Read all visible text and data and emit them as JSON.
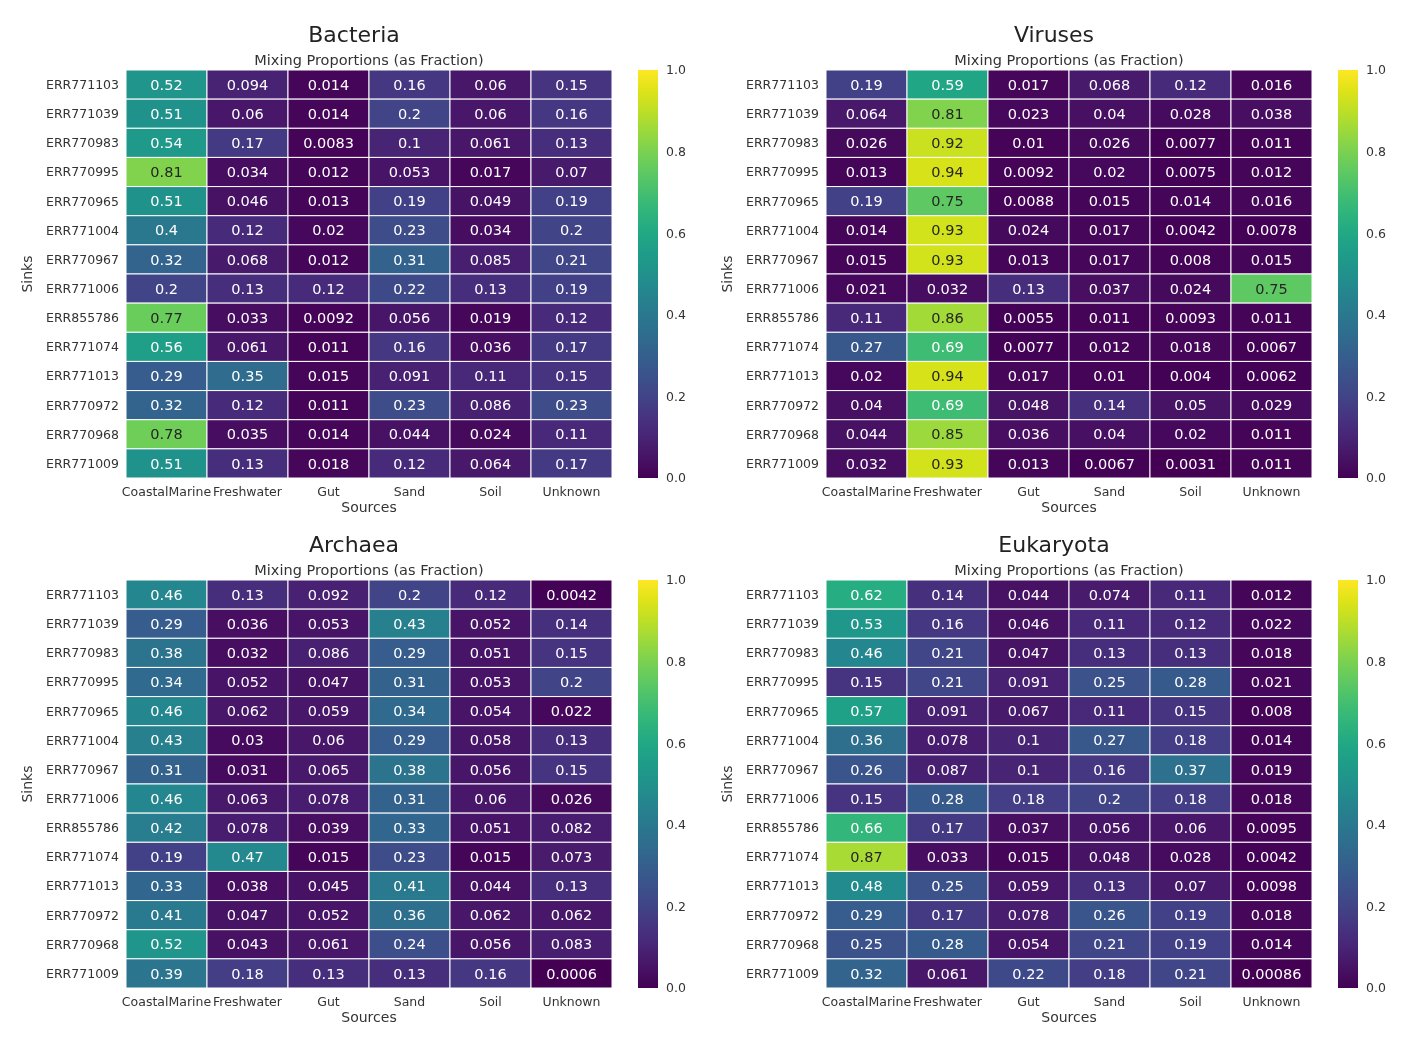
{
  "chart_data": [
    {
      "type": "heatmap",
      "title": "Bacteria",
      "subtitle": "Mixing Proportions (as Fraction)",
      "xlabel": "Sources",
      "ylabel": "Sinks",
      "categories": [
        "CoastalMarine",
        "Freshwater",
        "Gut",
        "Sand",
        "Soil",
        "Unknown"
      ],
      "y_categories": [
        "ERR771103",
        "ERR771039",
        "ERR770983",
        "ERR770995",
        "ERR770965",
        "ERR771004",
        "ERR770967",
        "ERR771006",
        "ERR855786",
        "ERR771074",
        "ERR771013",
        "ERR770972",
        "ERR770968",
        "ERR771009"
      ],
      "cells": [
        [
          0.52,
          0.094,
          0.014,
          0.16,
          0.06,
          0.15
        ],
        [
          0.51,
          0.06,
          0.014,
          0.2,
          0.06,
          0.16
        ],
        [
          0.54,
          0.17,
          0.0083,
          0.1,
          0.061,
          0.13
        ],
        [
          0.81,
          0.034,
          0.012,
          0.053,
          0.017,
          0.07
        ],
        [
          0.51,
          0.046,
          0.013,
          0.19,
          0.049,
          0.19
        ],
        [
          0.4,
          0.12,
          0.02,
          0.23,
          0.034,
          0.2
        ],
        [
          0.32,
          0.068,
          0.012,
          0.31,
          0.085,
          0.21
        ],
        [
          0.2,
          0.13,
          0.12,
          0.22,
          0.13,
          0.19
        ],
        [
          0.77,
          0.033,
          0.0092,
          0.056,
          0.019,
          0.12
        ],
        [
          0.56,
          0.061,
          0.011,
          0.16,
          0.036,
          0.17
        ],
        [
          0.29,
          0.35,
          0.015,
          0.091,
          0.11,
          0.15
        ],
        [
          0.32,
          0.12,
          0.011,
          0.23,
          0.086,
          0.23
        ],
        [
          0.78,
          0.035,
          0.014,
          0.044,
          0.024,
          0.11
        ],
        [
          0.51,
          0.13,
          0.018,
          0.12,
          0.064,
          0.17
        ]
      ],
      "clim": [
        0,
        1
      ],
      "cticks": [
        {
          "value": 0,
          "label": "0.0"
        },
        {
          "value": 0.2,
          "label": "0.2"
        },
        {
          "value": 0.4,
          "label": "0.4"
        },
        {
          "value": 0.6,
          "label": "0.6"
        },
        {
          "value": 0.8,
          "label": "0.8"
        },
        {
          "value": 1,
          "label": "1.0"
        }
      ],
      "data_labels": true
    },
    {
      "type": "heatmap",
      "title": "Viruses",
      "subtitle": "Mixing Proportions (as Fraction)",
      "xlabel": "Sources",
      "ylabel": "Sinks",
      "categories": [
        "CoastalMarine",
        "Freshwater",
        "Gut",
        "Sand",
        "Soil",
        "Unknown"
      ],
      "y_categories": [
        "ERR771103",
        "ERR771039",
        "ERR770983",
        "ERR770995",
        "ERR770965",
        "ERR771004",
        "ERR770967",
        "ERR771006",
        "ERR855786",
        "ERR771074",
        "ERR771013",
        "ERR770972",
        "ERR770968",
        "ERR771009"
      ],
      "cells": [
        [
          0.19,
          0.59,
          0.017,
          0.068,
          0.12,
          0.016
        ],
        [
          0.064,
          0.81,
          0.023,
          0.04,
          0.028,
          0.038
        ],
        [
          0.026,
          0.92,
          0.01,
          0.026,
          0.0077,
          0.011
        ],
        [
          0.013,
          0.94,
          0.0092,
          0.02,
          0.0075,
          0.012
        ],
        [
          0.19,
          0.75,
          0.0088,
          0.015,
          0.014,
          0.016
        ],
        [
          0.014,
          0.93,
          0.024,
          0.017,
          0.0042,
          0.0078
        ],
        [
          0.015,
          0.93,
          0.013,
          0.017,
          0.008,
          0.015
        ],
        [
          0.021,
          0.032,
          0.13,
          0.037,
          0.024,
          0.75
        ],
        [
          0.11,
          0.86,
          0.0055,
          0.011,
          0.0093,
          0.011
        ],
        [
          0.27,
          0.69,
          0.0077,
          0.012,
          0.018,
          0.0067
        ],
        [
          0.02,
          0.94,
          0.017,
          0.01,
          0.004,
          0.0062
        ],
        [
          0.04,
          0.69,
          0.048,
          0.14,
          0.05,
          0.029
        ],
        [
          0.044,
          0.85,
          0.036,
          0.04,
          0.02,
          0.011
        ],
        [
          0.032,
          0.93,
          0.013,
          0.0067,
          0.0031,
          0.011
        ]
      ],
      "clim": [
        0,
        1
      ],
      "cticks": [
        {
          "value": 0,
          "label": "0.0"
        },
        {
          "value": 0.2,
          "label": "0.2"
        },
        {
          "value": 0.4,
          "label": "0.4"
        },
        {
          "value": 0.6,
          "label": "0.6"
        },
        {
          "value": 0.8,
          "label": "0.8"
        },
        {
          "value": 1,
          "label": "1.0"
        }
      ],
      "data_labels": true
    },
    {
      "type": "heatmap",
      "title": "Archaea",
      "subtitle": "Mixing Proportions (as Fraction)",
      "xlabel": "Sources",
      "ylabel": "Sinks",
      "categories": [
        "CoastalMarine",
        "Freshwater",
        "Gut",
        "Sand",
        "Soil",
        "Unknown"
      ],
      "y_categories": [
        "ERR771103",
        "ERR771039",
        "ERR770983",
        "ERR770995",
        "ERR770965",
        "ERR771004",
        "ERR770967",
        "ERR771006",
        "ERR855786",
        "ERR771074",
        "ERR771013",
        "ERR770972",
        "ERR770968",
        "ERR771009"
      ],
      "cells": [
        [
          0.46,
          0.13,
          0.092,
          0.2,
          0.12,
          0.0042
        ],
        [
          0.29,
          0.036,
          0.053,
          0.43,
          0.052,
          0.14
        ],
        [
          0.38,
          0.032,
          0.086,
          0.29,
          0.051,
          0.15
        ],
        [
          0.34,
          0.052,
          0.047,
          0.31,
          0.053,
          0.2
        ],
        [
          0.46,
          0.062,
          0.059,
          0.34,
          0.054,
          0.022
        ],
        [
          0.43,
          0.03,
          0.06,
          0.29,
          0.058,
          0.13
        ],
        [
          0.31,
          0.031,
          0.065,
          0.38,
          0.056,
          0.15
        ],
        [
          0.46,
          0.063,
          0.078,
          0.31,
          0.06,
          0.026
        ],
        [
          0.42,
          0.078,
          0.039,
          0.33,
          0.051,
          0.082
        ],
        [
          0.19,
          0.47,
          0.015,
          0.23,
          0.015,
          0.073
        ],
        [
          0.33,
          0.038,
          0.045,
          0.41,
          0.044,
          0.13
        ],
        [
          0.41,
          0.047,
          0.052,
          0.36,
          0.062,
          0.062
        ],
        [
          0.52,
          0.043,
          0.061,
          0.24,
          0.056,
          0.083
        ],
        [
          0.39,
          0.18,
          0.13,
          0.13,
          0.16,
          0.0006
        ]
      ],
      "clim": [
        0,
        1
      ],
      "cticks": [
        {
          "value": 0,
          "label": "0.0"
        },
        {
          "value": 0.2,
          "label": "0.2"
        },
        {
          "value": 0.4,
          "label": "0.4"
        },
        {
          "value": 0.6,
          "label": "0.6"
        },
        {
          "value": 0.8,
          "label": "0.8"
        },
        {
          "value": 1,
          "label": "1.0"
        }
      ],
      "data_labels": true
    },
    {
      "type": "heatmap",
      "title": "Eukaryota",
      "subtitle": "Mixing Proportions (as Fraction)",
      "xlabel": "Sources",
      "ylabel": "Sinks",
      "categories": [
        "CoastalMarine",
        "Freshwater",
        "Gut",
        "Sand",
        "Soil",
        "Unknown"
      ],
      "y_categories": [
        "ERR771103",
        "ERR771039",
        "ERR770983",
        "ERR770995",
        "ERR770965",
        "ERR771004",
        "ERR770967",
        "ERR771006",
        "ERR855786",
        "ERR771074",
        "ERR771013",
        "ERR770972",
        "ERR770968",
        "ERR771009"
      ],
      "cells": [
        [
          0.62,
          0.14,
          0.044,
          0.074,
          0.11,
          0.012
        ],
        [
          0.53,
          0.16,
          0.046,
          0.11,
          0.12,
          0.022
        ],
        [
          0.46,
          0.21,
          0.047,
          0.13,
          0.13,
          0.018
        ],
        [
          0.15,
          0.21,
          0.091,
          0.25,
          0.28,
          0.021
        ],
        [
          0.57,
          0.091,
          0.067,
          0.11,
          0.15,
          0.008
        ],
        [
          0.36,
          0.078,
          0.1,
          0.27,
          0.18,
          0.014
        ],
        [
          0.26,
          0.087,
          0.1,
          0.16,
          0.37,
          0.019
        ],
        [
          0.15,
          0.28,
          0.18,
          0.2,
          0.18,
          0.018
        ],
        [
          0.66,
          0.17,
          0.037,
          0.056,
          0.06,
          0.0095
        ],
        [
          0.87,
          0.033,
          0.015,
          0.048,
          0.028,
          0.0042
        ],
        [
          0.48,
          0.25,
          0.059,
          0.13,
          0.07,
          0.0098
        ],
        [
          0.29,
          0.17,
          0.078,
          0.26,
          0.19,
          0.018
        ],
        [
          0.25,
          0.28,
          0.054,
          0.21,
          0.19,
          0.014
        ],
        [
          0.32,
          0.061,
          0.22,
          0.18,
          0.21,
          0.00086
        ]
      ],
      "clim": [
        0,
        1
      ],
      "cticks": [
        {
          "value": 0,
          "label": "0.0"
        },
        {
          "value": 0.2,
          "label": "0.2"
        },
        {
          "value": 0.4,
          "label": "0.4"
        },
        {
          "value": 0.6,
          "label": "0.6"
        },
        {
          "value": 0.8,
          "label": "0.8"
        },
        {
          "value": 1,
          "label": "1.0"
        }
      ],
      "data_labels": true
    }
  ]
}
